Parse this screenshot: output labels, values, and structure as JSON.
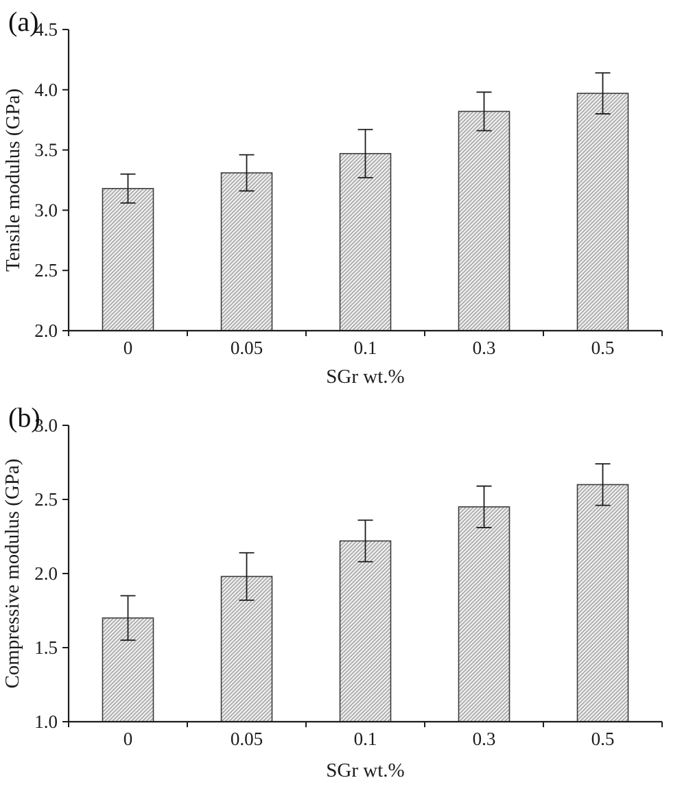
{
  "figure": {
    "background": "#ffffff"
  },
  "style": {
    "bar_fill": "#ececec",
    "hatch_color": "#999999",
    "bar_border": "#3c3c3c",
    "axis_color": "#1c1c1c",
    "text_color": "#1c1c1c"
  },
  "chart_data": [
    {
      "type": "bar",
      "panel_label": "(a)",
      "title": "",
      "xlabel": "SGr wt.%",
      "ylabel": "Tensile modulus (GPa)",
      "categories": [
        "0",
        "0.05",
        "0.1",
        "0.3",
        "0.5"
      ],
      "values": [
        3.18,
        3.31,
        3.47,
        3.82,
        3.97
      ],
      "errors": [
        0.12,
        0.15,
        0.2,
        0.16,
        0.17
      ],
      "ylim": [
        2.0,
        4.5
      ],
      "ytick_step": 0.5,
      "ytick_labels": [
        "2.0",
        "2.5",
        "3.0",
        "3.5",
        "4.0",
        "4.5"
      ],
      "grid": false,
      "legend": "none",
      "error_bars": "vertical, symmetric, capped"
    },
    {
      "type": "bar",
      "panel_label": "(b)",
      "title": "",
      "xlabel": "SGr wt.%",
      "ylabel": "Compressive modulus (GPa)",
      "categories": [
        "0",
        "0.05",
        "0.1",
        "0.3",
        "0.5"
      ],
      "values": [
        1.7,
        1.98,
        2.22,
        2.45,
        2.6
      ],
      "errors": [
        0.15,
        0.16,
        0.14,
        0.14,
        0.14
      ],
      "ylim": [
        1.0,
        3.0
      ],
      "ytick_step": 0.5,
      "ytick_labels": [
        "1.0",
        "1.5",
        "2.0",
        "2.5",
        "3.0"
      ],
      "grid": false,
      "legend": "none",
      "error_bars": "vertical, symmetric, capped"
    }
  ]
}
